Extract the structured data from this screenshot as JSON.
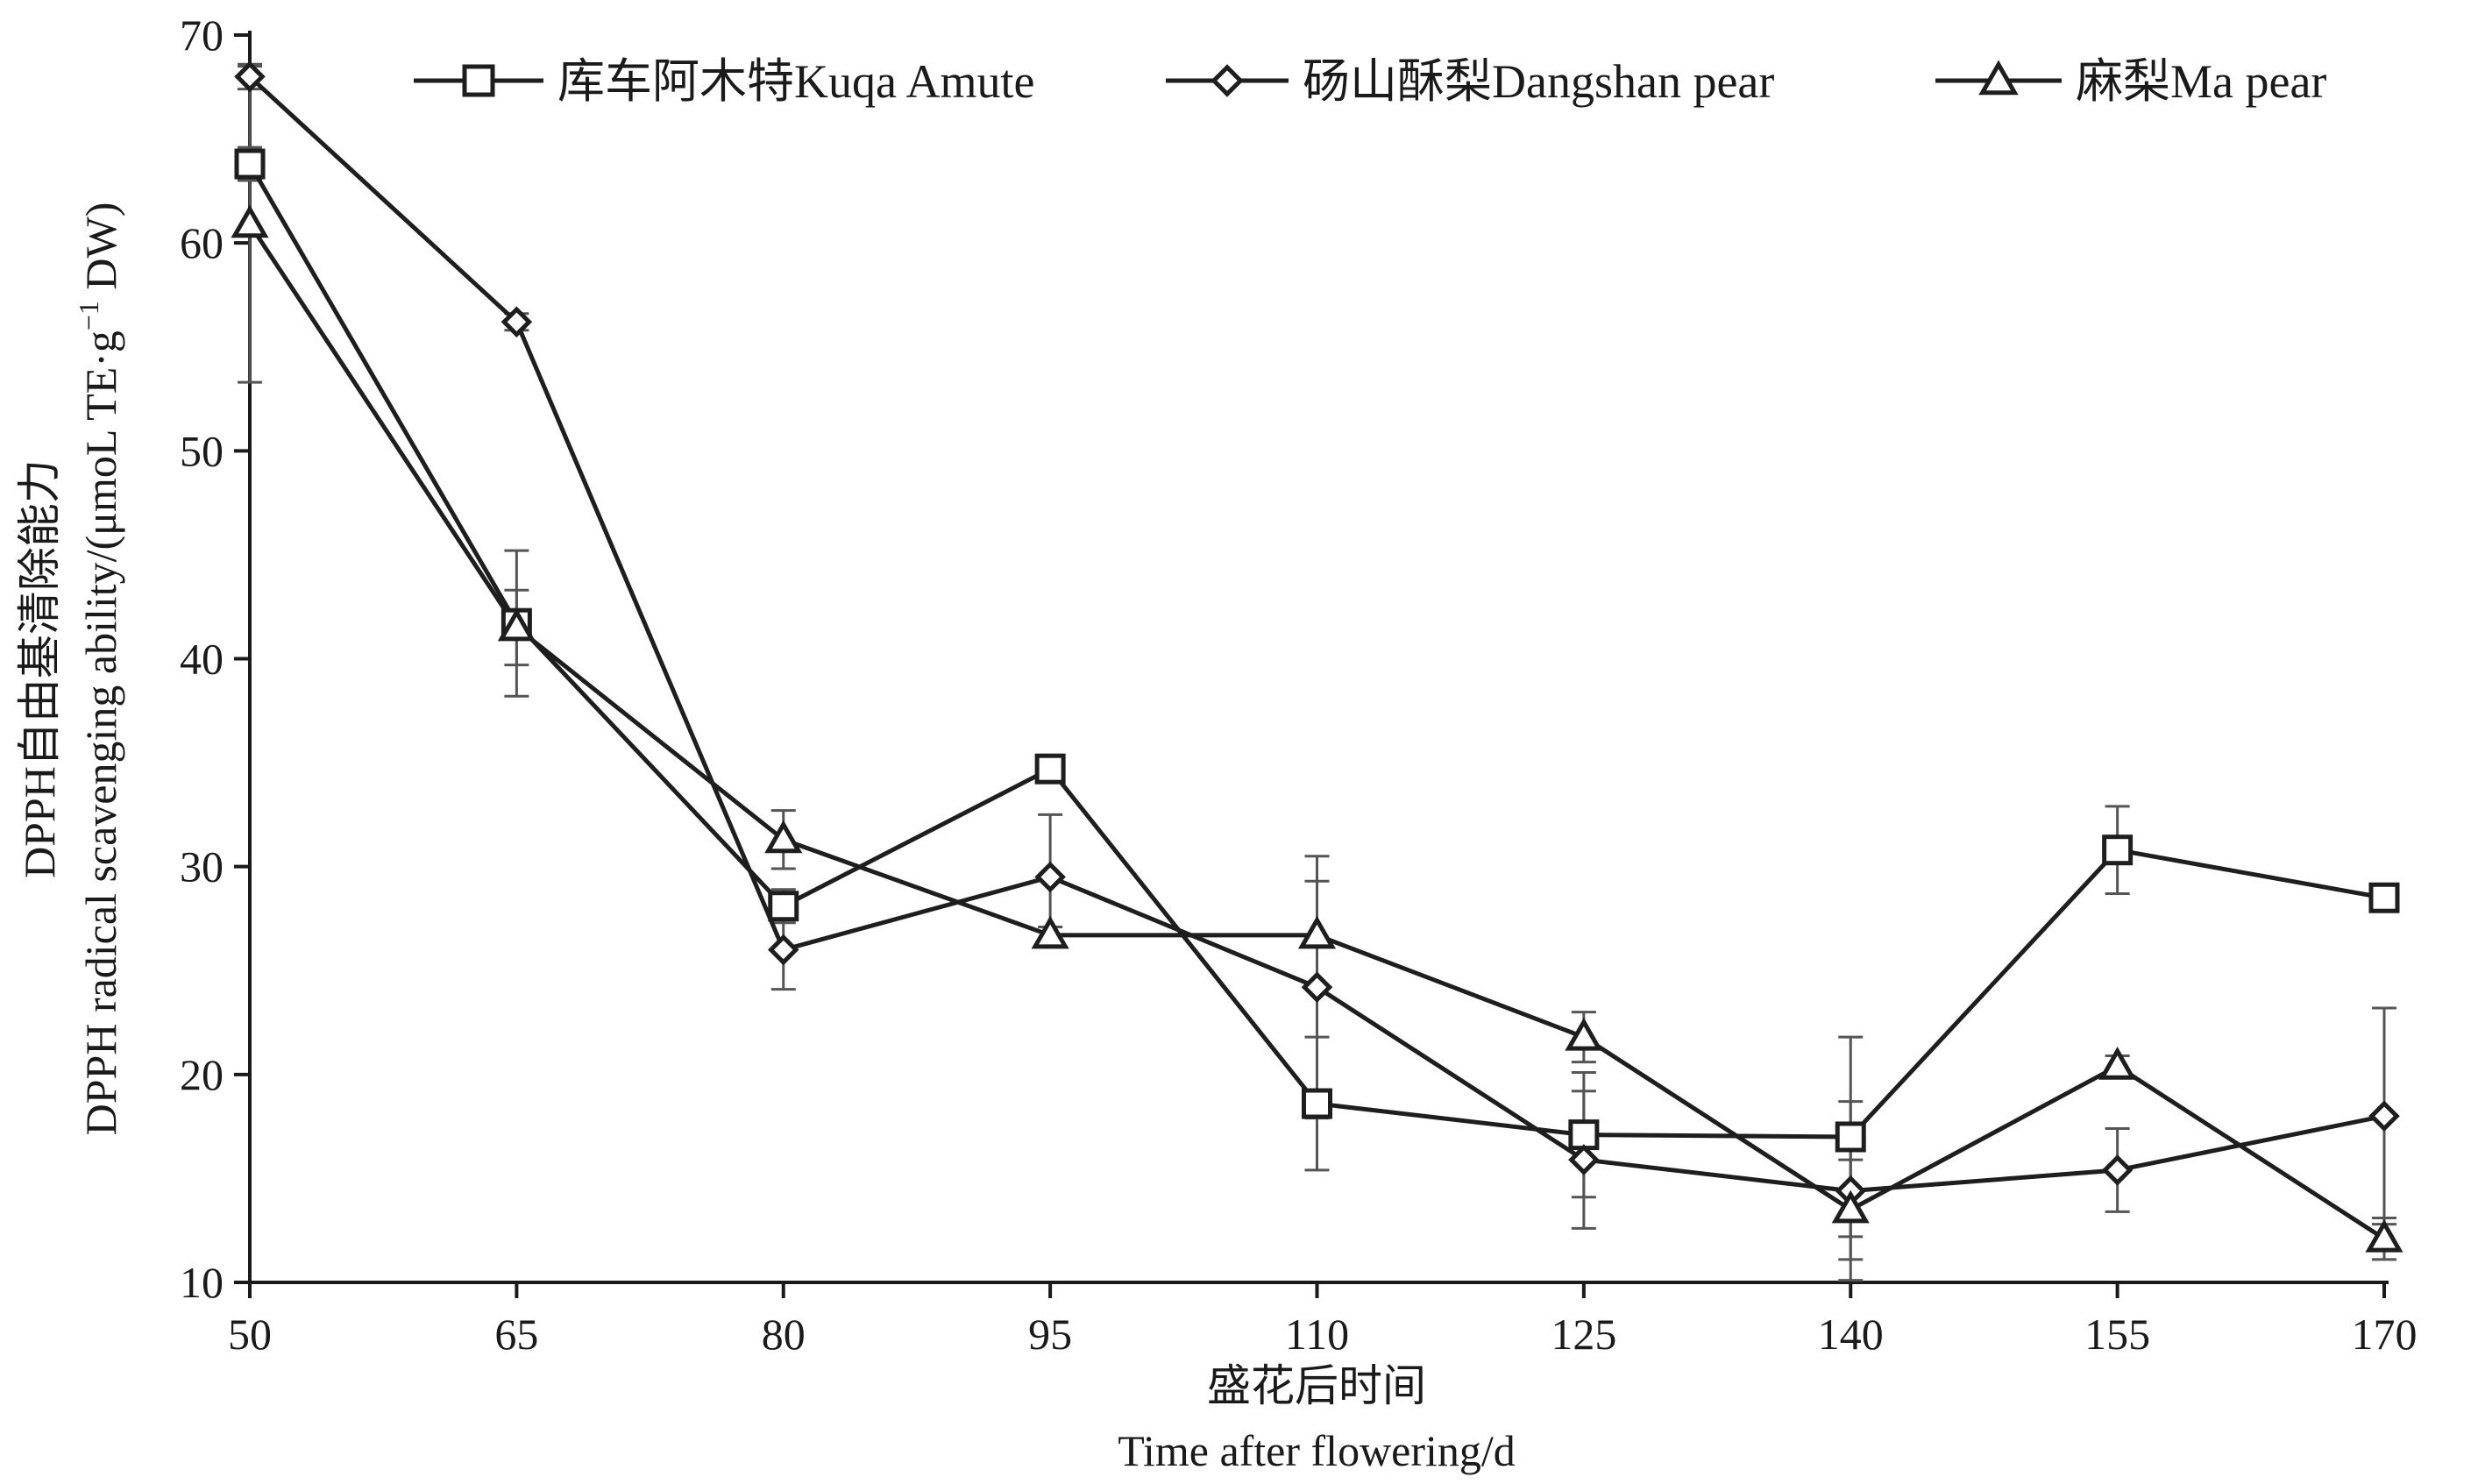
{
  "chart_data": {
    "type": "line",
    "x": [
      50,
      65,
      80,
      95,
      110,
      125,
      140,
      155,
      170
    ],
    "xlim": [
      50,
      170
    ],
    "ylim": [
      10,
      70
    ],
    "xticks": [
      50,
      65,
      80,
      95,
      110,
      125,
      140,
      155,
      170
    ],
    "yticks": [
      10,
      20,
      30,
      40,
      50,
      60,
      70
    ],
    "xlabel_cn": "盛花后时间",
    "xlabel_en": "Time after flowering/d",
    "ylabel_cn": "DPPH自由基清除能力",
    "ylabel_en_main": "DPPH radical scavenging ability/(μmoL TE·g",
    "ylabel_en_sup": "−1",
    "ylabel_en_tail": " DW)",
    "grid": false,
    "legend_position": "top",
    "series": [
      {
        "name": "库车阿木特Kuqa Amute",
        "marker": "square",
        "values": [
          63.8,
          41.7,
          28.1,
          34.7,
          18.6,
          17.1,
          17.0,
          30.8,
          28.5
        ],
        "errors": [
          0.8,
          3.5,
          0.8,
          0.4,
          3.2,
          3.0,
          4.8,
          2.1,
          0.5
        ]
      },
      {
        "name": "砀山酥梨Dangshan pear",
        "marker": "diamond",
        "values": [
          68.0,
          56.2,
          26.0,
          29.5,
          24.2,
          15.9,
          14.4,
          15.4,
          18.0
        ],
        "errors": [
          0.6,
          0.4,
          1.9,
          3.0,
          6.3,
          3.3,
          4.3,
          2.0,
          5.2
        ]
      },
      {
        "name": "麻梨Ma pear",
        "marker": "triangle",
        "values": [
          60.9,
          41.5,
          31.3,
          26.7,
          26.7,
          21.8,
          13.5,
          20.4,
          12.1
        ],
        "errors": [
          7.6,
          1.8,
          1.4,
          0.4,
          2.6,
          1.2,
          2.4,
          0.5,
          1.0
        ]
      }
    ],
    "colors": {
      "line": "#1e1e1e",
      "axis": "#1a1a1a",
      "error_bar": "#555555",
      "marker_fill": "#ffffff"
    }
  }
}
